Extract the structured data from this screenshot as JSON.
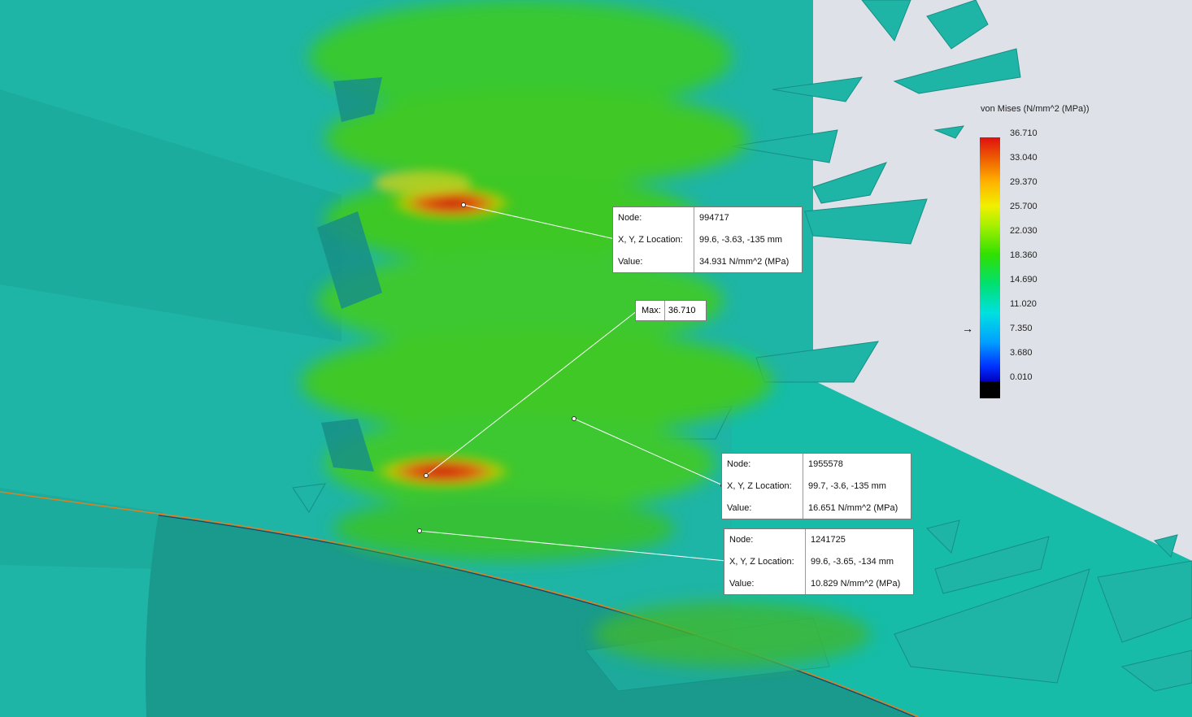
{
  "legend": {
    "title": "von Mises (N/mm^2 (MPa))",
    "ticks": [
      "36.710",
      "33.040",
      "29.370",
      "25.700",
      "22.030",
      "18.360",
      "14.690",
      "11.020",
      "7.350",
      "3.680",
      "0.010"
    ],
    "indicator_value": "7.350"
  },
  "max_label": {
    "key": "Max:",
    "value": "36.710"
  },
  "probes": [
    {
      "node_key": "Node:",
      "node": "994717",
      "loc_key": "X, Y, Z Location:",
      "loc": "99.6, -3.63, -135 mm",
      "value_key": "Value:",
      "value": "34.931 N/mm^2 (MPa)"
    },
    {
      "node_key": "Node:",
      "node": "1955578",
      "loc_key": "X, Y, Z Location:",
      "loc": "99.7, -3.6, -135 mm",
      "value_key": "Value:",
      "value": "16.651 N/mm^2 (MPa)"
    },
    {
      "node_key": "Node:",
      "node": "1241725",
      "loc_key": "X, Y, Z Location:",
      "loc": "99.6, -3.65, -134 mm",
      "value_key": "Value:",
      "value": "10.829 N/mm^2 (MPa)"
    }
  ],
  "colors": {
    "background": "#dfe1e8",
    "model_base": "#1fb5a6",
    "hot": "#d01818"
  }
}
